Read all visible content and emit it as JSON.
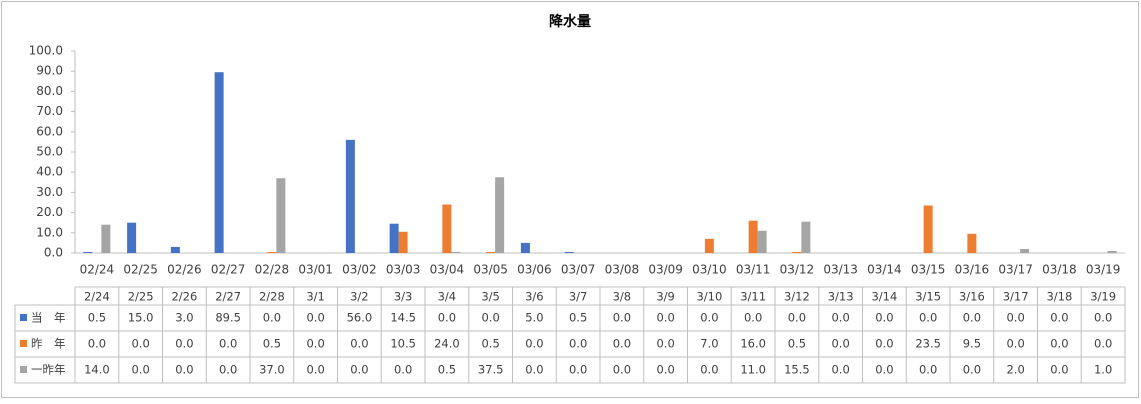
{
  "chart_data": {
    "type": "bar",
    "title": "降水量",
    "categories": [
      "02/24",
      "02/25",
      "02/26",
      "02/27",
      "02/28",
      "03/01",
      "03/02",
      "03/03",
      "03/04",
      "03/05",
      "03/06",
      "03/07",
      "03/08",
      "03/09",
      "03/10",
      "03/11",
      "03/12",
      "03/13",
      "03/14",
      "03/15",
      "03/16",
      "03/17",
      "03/18",
      "03/19"
    ],
    "table_header": [
      "2/24",
      "2/25",
      "2/26",
      "2/27",
      "2/28",
      "3/1",
      "3/2",
      "3/3",
      "3/4",
      "3/5",
      "3/6",
      "3/7",
      "3/8",
      "3/9",
      "3/10",
      "3/11",
      "3/12",
      "3/13",
      "3/14",
      "3/15",
      "3/16",
      "3/17",
      "3/18",
      "3/19"
    ],
    "series": [
      {
        "name": "当　年",
        "color": "#4472c4",
        "values": [
          0.5,
          15,
          3,
          89.5,
          0,
          0,
          56,
          14.5,
          0,
          0,
          5,
          0.5,
          0,
          0,
          0,
          0,
          0,
          0,
          0,
          0,
          0,
          0,
          0,
          0
        ],
        "value_labels": [
          "0.5",
          "15.0",
          "3.0",
          "89.5",
          "0.0",
          "0.0",
          "56.0",
          "14.5",
          "0.0",
          "0.0",
          "5.0",
          "0.5",
          "0.0",
          "0.0",
          "0.0",
          "0.0",
          "0.0",
          "0.0",
          "0.0",
          "0.0",
          "0.0",
          "0.0",
          "0.0",
          "0.0"
        ]
      },
      {
        "name": "昨　年",
        "color": "#ed7d31",
        "values": [
          0,
          0,
          0,
          0,
          0.5,
          0,
          0,
          10.5,
          24,
          0.5,
          0,
          0,
          0,
          0,
          7,
          16,
          0.5,
          0,
          0,
          23.5,
          9.5,
          0,
          0,
          0
        ],
        "value_labels": [
          "0.0",
          "0.0",
          "0.0",
          "0.0",
          "0.5",
          "0.0",
          "0.0",
          "10.5",
          "24.0",
          "0.5",
          "0.0",
          "0.0",
          "0.0",
          "0.0",
          "7.0",
          "16.0",
          "0.5",
          "0.0",
          "0.0",
          "23.5",
          "9.5",
          "0.0",
          "0.0",
          "0.0"
        ]
      },
      {
        "name": "一昨年",
        "color": "#a5a5a5",
        "values": [
          14,
          0,
          0,
          0,
          37,
          0,
          0,
          0,
          0.5,
          37.5,
          0,
          0,
          0,
          0,
          0,
          11,
          15.5,
          0,
          0,
          0,
          0,
          2,
          0,
          1
        ],
        "value_labels": [
          "14.0",
          "0.0",
          "0.0",
          "0.0",
          "37.0",
          "0.0",
          "0.0",
          "0.0",
          "0.5",
          "37.5",
          "0.0",
          "0.0",
          "0.0",
          "0.0",
          "0.0",
          "11.0",
          "15.5",
          "0.0",
          "0.0",
          "0.0",
          "0.0",
          "2.0",
          "0.0",
          "1.0"
        ]
      }
    ],
    "ylim": [
      0,
      100
    ],
    "yticks": [
      {
        "value": 0,
        "label": "0.0"
      },
      {
        "value": 10,
        "label": "10.0"
      },
      {
        "value": 20,
        "label": "20.0"
      },
      {
        "value": 30,
        "label": "30.0"
      },
      {
        "value": 40,
        "label": "40.0"
      },
      {
        "value": 50,
        "label": "50.0"
      },
      {
        "value": 60,
        "label": "60.0"
      },
      {
        "value": 70,
        "label": "70.0"
      },
      {
        "value": 80,
        "label": "80.0"
      },
      {
        "value": 90,
        "label": "90.0"
      },
      {
        "value": 100,
        "label": "100.0"
      }
    ]
  }
}
